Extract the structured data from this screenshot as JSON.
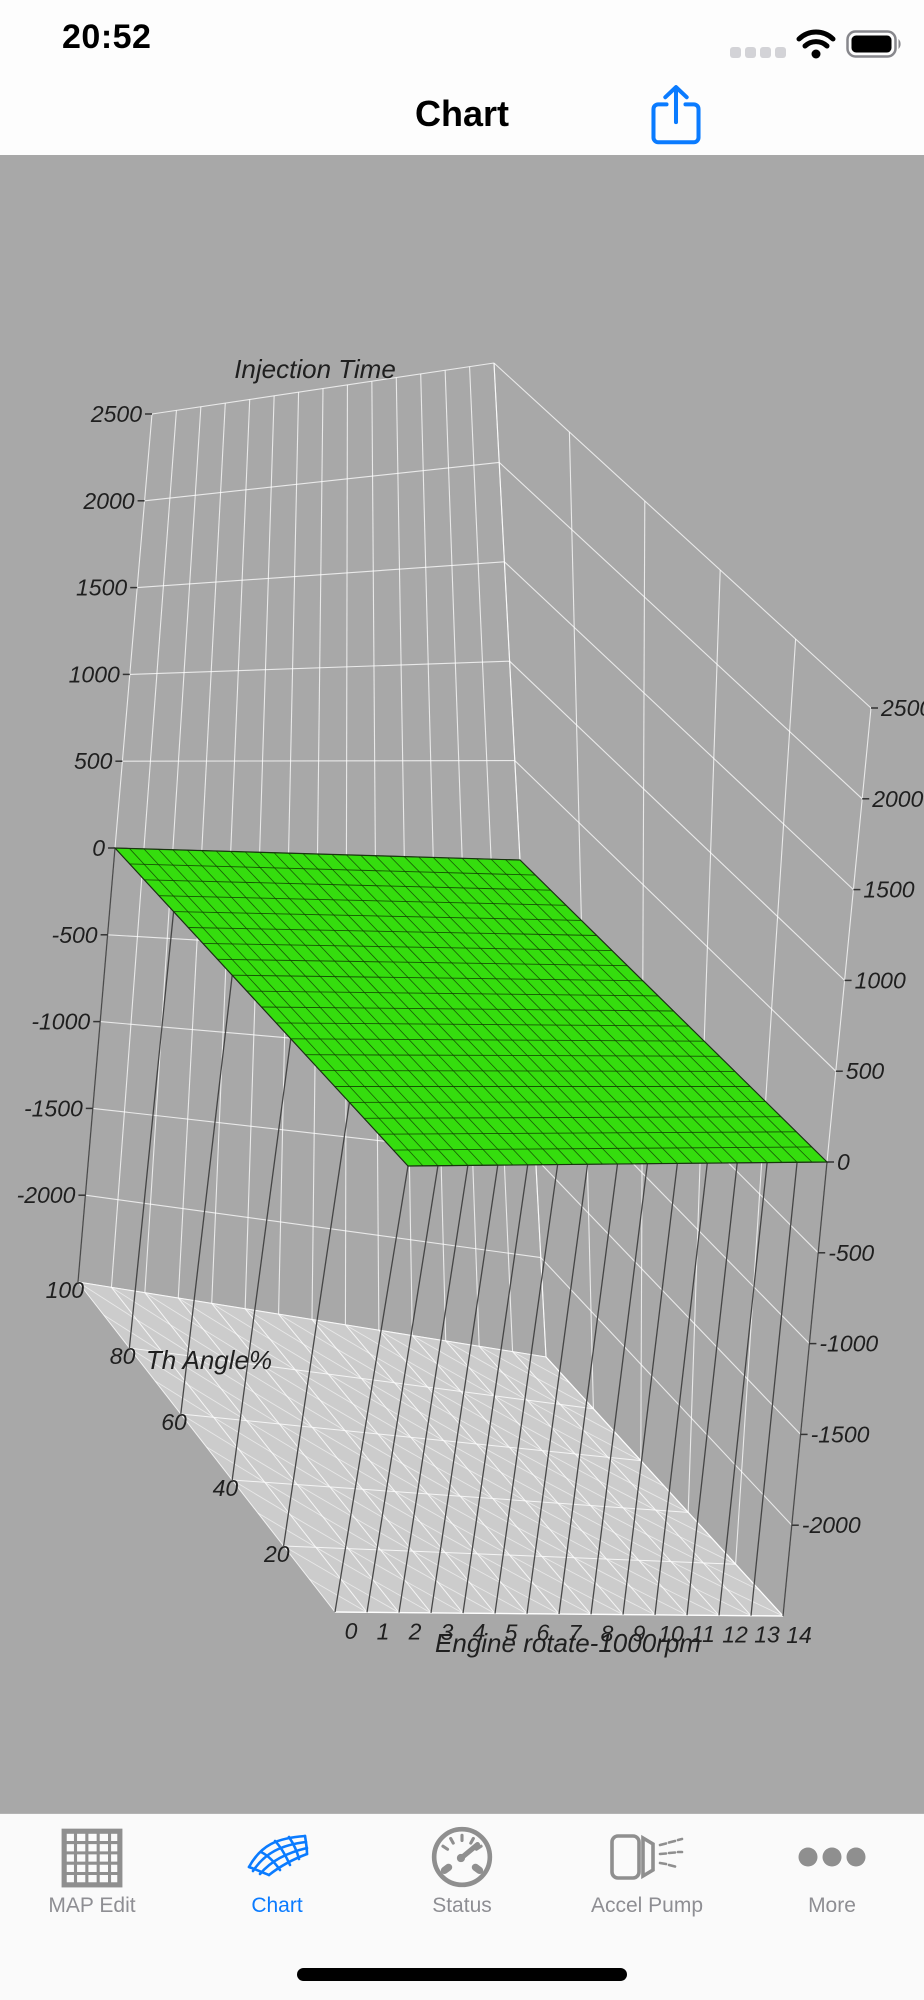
{
  "status_bar": {
    "time": "20:52",
    "cellular_dots": 4,
    "wifi_icon": "wifi",
    "battery_icon": "battery-full"
  },
  "nav_bar": {
    "title": "Chart",
    "share_icon": "share-up-arrow"
  },
  "chart_data": {
    "type": "surface",
    "title": "Injection Time",
    "xlabel": "Engine rotate-1000rpm",
    "ylabel": "Th Angle%",
    "zlabel": "",
    "xlim": [
      0,
      14
    ],
    "ylim": [
      0,
      100
    ],
    "zlim": [
      -2500,
      2500
    ],
    "x_ticks": [
      0,
      1,
      2,
      3,
      4,
      5,
      6,
      7,
      8,
      9,
      10,
      11,
      12,
      13,
      14
    ],
    "y_ticks": [
      100,
      80,
      60,
      40,
      20
    ],
    "z_ticks_left": [
      2500,
      2000,
      1500,
      1000,
      500,
      0,
      -500,
      -1000,
      -1500,
      -2000
    ],
    "z_ticks_right": [
      2500,
      2000,
      1500,
      1000,
      500,
      0,
      -500,
      -1000,
      -1500,
      -2000
    ],
    "grid": {
      "x_step": 1,
      "y_step": 20,
      "z_step": 500,
      "floor_diag_y_step": 10,
      "grid_on": true
    },
    "surface": {
      "z_constant": 0,
      "x_step": 0.5,
      "y_step": 5,
      "fill": "#35dd0e",
      "mesh_color": "#123c04",
      "edge_color": "#2b2b2b"
    },
    "colors": {
      "background": "#a8a8a8",
      "floor": "#cccccc",
      "wall_grid": "#ffffff",
      "drop_lines": "#3a3a3a",
      "text": "#1f1f1f"
    },
    "legend": null
  },
  "tab_bar": {
    "active": "Chart",
    "items": [
      {
        "label": "MAP Edit",
        "icon": "grid-table-icon"
      },
      {
        "label": "Chart",
        "icon": "surface-mesh-icon"
      },
      {
        "label": "Status",
        "icon": "gauge-icon"
      },
      {
        "label": "Accel Pump",
        "icon": "injector-spray-icon"
      },
      {
        "label": "More",
        "icon": "ellipsis-icon"
      }
    ]
  }
}
